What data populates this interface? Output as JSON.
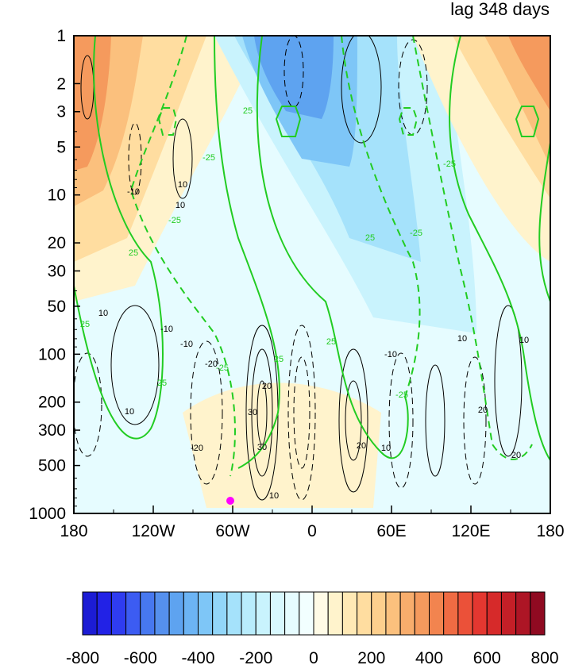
{
  "chart_data": {
    "type": "heatmap",
    "title": "lag 348 days",
    "xlabel": "",
    "ylabel": "",
    "x_ticks": [
      {
        "value": -180,
        "label": "180"
      },
      {
        "value": -120,
        "label": "120W"
      },
      {
        "value": -60,
        "label": "60W"
      },
      {
        "value": 0,
        "label": "0"
      },
      {
        "value": 60,
        "label": "60E"
      },
      {
        "value": 120,
        "label": "120E"
      },
      {
        "value": 180,
        "label": "180"
      }
    ],
    "xlim": [
      -180,
      180
    ],
    "y_scale": "log",
    "y_inverted": true,
    "ylim": [
      1000,
      1
    ],
    "y_ticks": [
      {
        "value": 1,
        "label": "1"
      },
      {
        "value": 2,
        "label": "2"
      },
      {
        "value": 3,
        "label": "3"
      },
      {
        "value": 5,
        "label": "5"
      },
      {
        "value": 10,
        "label": "10"
      },
      {
        "value": 20,
        "label": "20"
      },
      {
        "value": 30,
        "label": "30"
      },
      {
        "value": 50,
        "label": "50"
      },
      {
        "value": 100,
        "label": "100"
      },
      {
        "value": 200,
        "label": "200"
      },
      {
        "value": 300,
        "label": "300"
      },
      {
        "value": 500,
        "label": "500"
      },
      {
        "value": 1000,
        "label": "1000"
      }
    ],
    "colorbar": {
      "levels": [
        -800,
        -750,
        -700,
        -650,
        -600,
        -550,
        -500,
        -450,
        -400,
        -350,
        -300,
        -250,
        -200,
        -150,
        -100,
        -50,
        0,
        50,
        100,
        150,
        200,
        250,
        300,
        350,
        400,
        450,
        500,
        550,
        600,
        650,
        700,
        750,
        800
      ],
      "colors": [
        "#1c1cd4",
        "#2222e6",
        "#2f3cf0",
        "#3c5cf2",
        "#4778f0",
        "#5590ee",
        "#5ea3f0",
        "#6cb4f4",
        "#7ec6f7",
        "#92d6f9",
        "#a5e2fb",
        "#b8ecfc",
        "#c9f3fd",
        "#d8f8fe",
        "#e6fcff",
        "#f2ffff",
        "#fffbe6",
        "#fff3cc",
        "#ffe9b5",
        "#ffdda0",
        "#fdcf8d",
        "#fbc07d",
        "#f8ad6c",
        "#f59a5d",
        "#f2844f",
        "#ef6b43",
        "#eb5139",
        "#e43730",
        "#d62a2a",
        "#c41f27",
        "#ad1525",
        "#8f0a21"
      ],
      "tick_labels": [
        "-800",
        "-600",
        "-400",
        "-200",
        "0",
        "200",
        "400",
        "600",
        "800"
      ]
    },
    "fill_regions": [
      {
        "level": 250,
        "lon_lat_shape": "orange band west-pacific upper",
        "lon_min": -180,
        "lon_max": -150,
        "p_min": 1,
        "p_max": 10
      },
      {
        "level": 250,
        "lon_lat_shape": "orange band east-pacific upper",
        "lon_min": 130,
        "lon_max": 180,
        "p_min": 1,
        "p_max": 10
      },
      {
        "level": -300,
        "lon_lat_shape": "blue core over 0 longitude",
        "lon_min": -45,
        "lon_max": 25,
        "p_min": 1,
        "p_max": 8
      }
    ],
    "contour_labels_black": [
      "10",
      "10",
      "-10",
      "10",
      "-10",
      "10",
      "-10",
      "20",
      "30",
      "10",
      "20",
      "-20",
      "-20",
      "20",
      "30",
      "10",
      "-10",
      "10",
      "10",
      "20"
    ],
    "contour_labels_green": [
      "25",
      "-25",
      "25",
      "-25",
      "-25",
      "25",
      "25",
      "-25",
      "25",
      "-25",
      "25",
      "25",
      "-25"
    ],
    "marker": {
      "lon": -60,
      "p": 900,
      "color": "#ff00ff"
    }
  }
}
